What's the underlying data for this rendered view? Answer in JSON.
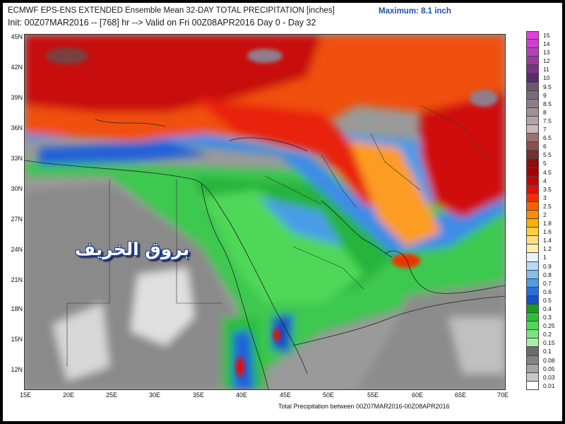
{
  "header": {
    "title": "ECMWF EPS-ENS EXTENDED Ensemble Mean 32-DAY TOTAL PRECIPITATION [inches]",
    "maximum": "Maximum: 8.1 inch",
    "subtitle": "Init: 00Z07MAR2016 -- [768] hr --> Valid on Fri 00Z08APR2016  Day 0 - Day 32"
  },
  "footer": "Total Precipitation between 00Z07MAR2016-00Z08APR2016",
  "watermark": "بروق الخريف",
  "axes": {
    "lat_labels": [
      "45N",
      "42N",
      "39N",
      "36N",
      "33N",
      "30N",
      "27N",
      "24N",
      "21N",
      "18N",
      "15N",
      "12N"
    ],
    "lon_labels": [
      "15E",
      "20E",
      "25E",
      "30E",
      "35E",
      "40E",
      "45E",
      "50E",
      "55E",
      "60E",
      "65E",
      "70E"
    ]
  },
  "legend": [
    {
      "label": "15",
      "color": "#e63ce6"
    },
    {
      "label": "14",
      "color": "#d040d0"
    },
    {
      "label": "13",
      "color": "#b840b8"
    },
    {
      "label": "12",
      "color": "#9c3a9c"
    },
    {
      "label": "11",
      "color": "#7c3088"
    },
    {
      "label": "10",
      "color": "#5a2a6e"
    },
    {
      "label": "9.5",
      "color": "#6a5a70"
    },
    {
      "label": "9",
      "color": "#7a6a7c"
    },
    {
      "label": "8.5",
      "color": "#8e7e8c"
    },
    {
      "label": "8",
      "color": "#a09098"
    },
    {
      "label": "7.5",
      "color": "#b4a4a8"
    },
    {
      "label": "7",
      "color": "#c8b8b8"
    },
    {
      "label": "6.5",
      "color": "#a07070"
    },
    {
      "label": "6",
      "color": "#8a5050"
    },
    {
      "label": "5.5",
      "color": "#743030"
    },
    {
      "label": "5",
      "color": "#8a1010"
    },
    {
      "label": "4.5",
      "color": "#a80000"
    },
    {
      "label": "4",
      "color": "#c80000"
    },
    {
      "label": "3.5",
      "color": "#e01010"
    },
    {
      "label": "3",
      "color": "#f03000"
    },
    {
      "label": "2.5",
      "color": "#f86000"
    },
    {
      "label": "2",
      "color": "#fc8c00"
    },
    {
      "label": "1.8",
      "color": "#fcb000"
    },
    {
      "label": "1.6",
      "color": "#fcd040"
    },
    {
      "label": "1.4",
      "color": "#fce080"
    },
    {
      "label": "1.2",
      "color": "#fcf0a8"
    },
    {
      "label": "1",
      "color": "#e8f4fc"
    },
    {
      "label": "0.9",
      "color": "#b4dcf8"
    },
    {
      "label": "0.8",
      "color": "#80c0f0"
    },
    {
      "label": "0.7",
      "color": "#4c9ce8"
    },
    {
      "label": "0.6",
      "color": "#2870dc"
    },
    {
      "label": "0.5",
      "color": "#1450c8"
    },
    {
      "label": "0.4",
      "color": "#10a020"
    },
    {
      "label": "0.3",
      "color": "#28c038"
    },
    {
      "label": "0.25",
      "color": "#50d858"
    },
    {
      "label": "0.2",
      "color": "#78e47c"
    },
    {
      "label": "0.15",
      "color": "#a8f0a8"
    },
    {
      "label": "0.1",
      "color": "#6c6c6c"
    },
    {
      "label": "0.08",
      "color": "#848484"
    },
    {
      "label": "0.05",
      "color": "#a4a4a4"
    },
    {
      "label": "0.03",
      "color": "#c8c8c8"
    },
    {
      "label": "0.01",
      "color": "#ffffff"
    }
  ]
}
